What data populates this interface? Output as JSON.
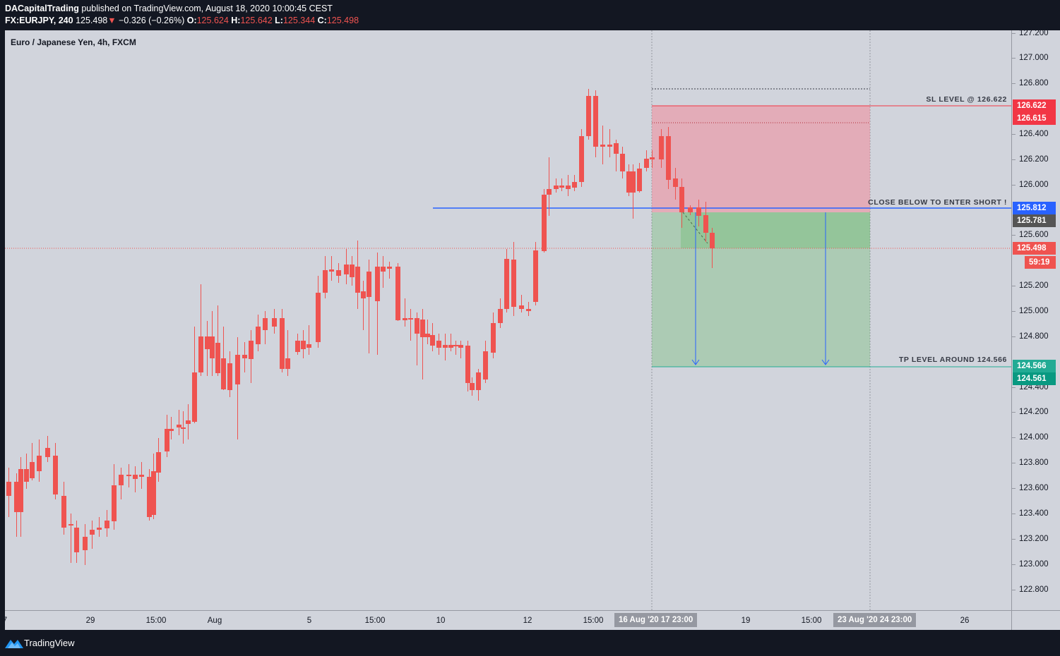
{
  "header": {
    "author": "DACapitalTrading",
    "published_text": "published on TradingView.com, August 18, 2020 10:00:45 CEST",
    "symbol": "FX:EURJPY, 240",
    "last_price": "125.498",
    "change_arrow": "▼",
    "change": "−0.326 (−0.26%)",
    "o_label": "O:",
    "o_value": "125.624",
    "h_label": "H:",
    "h_value": "125.642",
    "l_label": "L:",
    "l_value": "125.344",
    "c_label": "C:",
    "c_value": "125.498"
  },
  "chart": {
    "symbol_description": "Euro / Japanese Yen, 4h, FXCM",
    "colors": {
      "background": "#d1d4dc",
      "up_candle": "#363a45",
      "down_candle": "#ef5350",
      "stop_zone": "#f28b9b",
      "target_zone": "#66bb6a",
      "trigger_line": "#2962ff",
      "sl_line": "#f23645",
      "tp_line": "#22ab94"
    },
    "annotations": {
      "sl_label": "SL LEVEL @ 126.622",
      "entry_label": "CLOSE BELOW TO ENTER SHORT !",
      "tp_label": "TP LEVEL AROUND 124.566"
    }
  },
  "price_axis": {
    "ticks": [
      "127.200",
      "127.000",
      "126.800",
      "126.400",
      "126.200",
      "126.000",
      "125.600",
      "125.200",
      "125.000",
      "124.800",
      "124.400",
      "124.200",
      "124.000",
      "123.800",
      "123.600",
      "123.400",
      "123.200",
      "123.000",
      "122.800"
    ],
    "tags": [
      {
        "text": "126.622",
        "color": "#f23645"
      },
      {
        "text": "126.615",
        "color": "#f23645"
      },
      {
        "text": "125.812",
        "color": "#2962ff"
      },
      {
        "text": "125.781",
        "color": "#555555"
      },
      {
        "text": "125.498",
        "color": "#ef5350"
      },
      {
        "text": "59:19",
        "color": "#ef5350"
      },
      {
        "text": "124.566",
        "color": "#22ab94"
      },
      {
        "text": "124.561",
        "color": "#089981"
      }
    ]
  },
  "time_axis": {
    "ticks": [
      "7",
      "29",
      "15:00",
      "Aug",
      "5",
      "15:00",
      "10",
      "12",
      "15:00",
      "19",
      "15:00",
      "26"
    ],
    "tags": [
      "16 Aug '20",
      "17",
      "23:00",
      "23 Aug '20",
      "24",
      "23:00"
    ]
  },
  "footer": {
    "brand": "TradingView"
  }
}
